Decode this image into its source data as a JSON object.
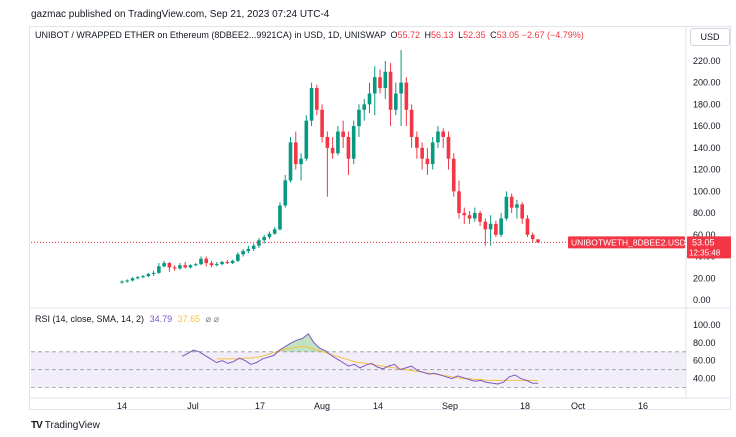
{
  "publisher_line": "gazmac published on TradingView.com, Sep 21, 2023 07:24 UTC-4",
  "legend": {
    "symbol": "UNIBOT / WRAPPED ETHER on Ethereum (8DBEE2...9921CA) in USD, 1D, UNISWAP",
    "open_label": "O",
    "open": "55.72",
    "high_label": "H",
    "high": "56.13",
    "low_label": "L",
    "low": "52.35",
    "close_label": "C",
    "close": "53.05",
    "change": "−2.67 (−4.79%)"
  },
  "currency": "USD",
  "price_tag": {
    "label": "UNIBOTWETH_8DBEE2.USD",
    "price": "53.05",
    "countdown": "12:35:48"
  },
  "rsi_legend": {
    "label": "RSI (14, close, SMA, 14, 2)",
    "rsi": "34.79",
    "sma": "37.65",
    "glyphs": "⌀ ⌀"
  },
  "footer": {
    "logo": "TV",
    "brand": "TradingView"
  },
  "colors": {
    "up": "#089981",
    "down": "#f23645",
    "rsi": "#7e57c2",
    "sma": "#f5c242",
    "band": "#ede7f6"
  },
  "chart_data": {
    "type": "candlestick",
    "price_axis": {
      "ticks": [
        "0.00",
        "20.00",
        "40.00",
        "60.00",
        "80.00",
        "100.00",
        "120.00",
        "140.00",
        "160.00",
        "180.00",
        "200.00",
        "220.00"
      ],
      "ylim": [
        0,
        230
      ]
    },
    "rsi_axis": {
      "ticks": [
        "40.00",
        "60.00",
        "80.00",
        "100.00"
      ],
      "ylim": [
        25,
        100
      ],
      "bands": [
        30,
        50,
        70
      ]
    },
    "x_axis": {
      "labels": [
        "14",
        "Jul",
        "17",
        "Aug",
        "14",
        "Sep",
        "18",
        "Oct",
        "16"
      ]
    },
    "candles": [
      [
        17,
        18,
        15,
        17
      ],
      [
        17,
        19,
        16,
        18
      ],
      [
        18,
        21,
        17,
        20
      ],
      [
        20,
        22,
        19,
        21
      ],
      [
        21,
        23,
        20,
        22
      ],
      [
        22,
        25,
        21,
        24
      ],
      [
        24,
        27,
        22,
        25
      ],
      [
        25,
        34,
        24,
        31
      ],
      [
        31,
        36,
        30,
        34
      ],
      [
        34,
        35,
        26,
        30
      ],
      [
        30,
        32,
        27,
        29
      ],
      [
        29,
        34,
        28,
        32
      ],
      [
        32,
        35,
        29,
        30
      ],
      [
        30,
        33,
        29,
        32
      ],
      [
        32,
        34,
        31,
        33
      ],
      [
        33,
        40,
        32,
        38
      ],
      [
        38,
        40,
        31,
        34
      ],
      [
        34,
        36,
        30,
        32
      ],
      [
        32,
        35,
        31,
        33
      ],
      [
        33,
        36,
        32,
        35
      ],
      [
        35,
        37,
        33,
        34
      ],
      [
        34,
        37,
        33,
        36
      ],
      [
        36,
        44,
        35,
        42
      ],
      [
        42,
        47,
        40,
        45
      ],
      [
        45,
        50,
        43,
        47
      ],
      [
        47,
        52,
        45,
        50
      ],
      [
        50,
        57,
        48,
        55
      ],
      [
        55,
        60,
        52,
        58
      ],
      [
        58,
        63,
        56,
        61
      ],
      [
        61,
        67,
        60,
        65
      ],
      [
        65,
        90,
        64,
        87
      ],
      [
        87,
        115,
        85,
        110
      ],
      [
        110,
        150,
        108,
        145
      ],
      [
        145,
        155,
        120,
        125
      ],
      [
        125,
        135,
        110,
        130
      ],
      [
        130,
        170,
        128,
        165
      ],
      [
        165,
        200,
        160,
        195
      ],
      [
        195,
        198,
        170,
        175
      ],
      [
        175,
        180,
        145,
        150
      ],
      [
        150,
        155,
        95,
        140
      ],
      [
        140,
        150,
        130,
        135
      ],
      [
        135,
        160,
        133,
        155
      ],
      [
        155,
        165,
        140,
        150
      ],
      [
        150,
        155,
        115,
        130
      ],
      [
        130,
        165,
        125,
        160
      ],
      [
        160,
        180,
        150,
        175
      ],
      [
        175,
        185,
        165,
        180
      ],
      [
        180,
        200,
        172,
        190
      ],
      [
        190,
        215,
        170,
        205
      ],
      [
        205,
        212,
        190,
        195
      ],
      [
        195,
        220,
        185,
        210
      ],
      [
        210,
        218,
        160,
        175
      ],
      [
        175,
        200,
        170,
        190
      ],
      [
        190,
        230,
        160,
        200
      ],
      [
        200,
        205,
        160,
        175
      ],
      [
        175,
        180,
        140,
        150
      ],
      [
        150,
        155,
        130,
        140
      ],
      [
        140,
        145,
        120,
        130
      ],
      [
        130,
        140,
        115,
        125
      ],
      [
        125,
        150,
        120,
        145
      ],
      [
        145,
        160,
        140,
        155
      ],
      [
        155,
        158,
        140,
        150
      ],
      [
        150,
        155,
        120,
        130
      ],
      [
        130,
        135,
        95,
        100
      ],
      [
        100,
        110,
        75,
        80
      ],
      [
        80,
        85,
        70,
        78
      ],
      [
        78,
        82,
        70,
        75
      ],
      [
        75,
        85,
        72,
        80
      ],
      [
        80,
        82,
        68,
        72
      ],
      [
        72,
        75,
        50,
        65
      ],
      [
        65,
        78,
        50,
        70
      ],
      [
        70,
        73,
        58,
        60
      ],
      [
        60,
        80,
        58,
        75
      ],
      [
        75,
        100,
        73,
        95
      ],
      [
        95,
        98,
        80,
        85
      ],
      [
        85,
        92,
        75,
        88
      ],
      [
        88,
        90,
        70,
        75
      ],
      [
        75,
        78,
        58,
        60
      ],
      [
        60,
        62,
        53,
        56
      ],
      [
        55.72,
        56.13,
        52.35,
        53.05
      ]
    ],
    "rsi": [
      65,
      68,
      72,
      70,
      66,
      62,
      58,
      60,
      57,
      59,
      63,
      60,
      56,
      58,
      62,
      64,
      66,
      72,
      76,
      80,
      83,
      85,
      90,
      80,
      74,
      71,
      66,
      62,
      58,
      54,
      56,
      52,
      55,
      57,
      53,
      51,
      54,
      56,
      50,
      52,
      54,
      49,
      47,
      45,
      46,
      44,
      42,
      40,
      43,
      41,
      39,
      37,
      38,
      36,
      35,
      34,
      36,
      42,
      44,
      40,
      38,
      35,
      34.79
    ],
    "rsi_sma": [
      null,
      null,
      null,
      null,
      null,
      null,
      62,
      62,
      62,
      62,
      62,
      63,
      63,
      64,
      65,
      67,
      69,
      71,
      73,
      74,
      75,
      76,
      75,
      73,
      71,
      69,
      67,
      65,
      63,
      61,
      59,
      58,
      57,
      56,
      55,
      54,
      53,
      52,
      51,
      50,
      49,
      48,
      47,
      46,
      45,
      44,
      43,
      42,
      41,
      40,
      40,
      39,
      39,
      38,
      38,
      38,
      38,
      38,
      38,
      38,
      38,
      38,
      37.65
    ]
  }
}
